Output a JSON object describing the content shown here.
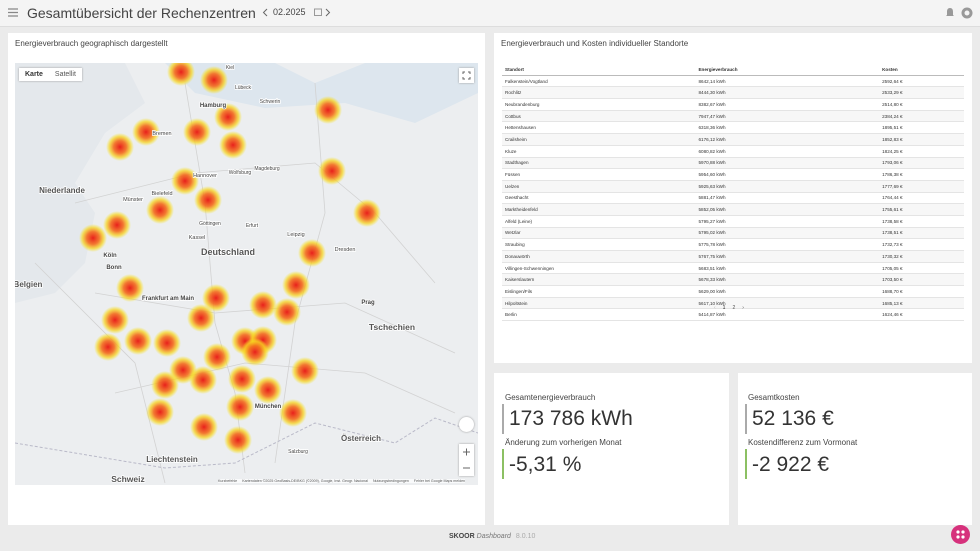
{
  "header": {
    "title": "Gesamtübersicht der Rechenzentren",
    "period": "02.2025"
  },
  "map_panel": {
    "title": "Energieverbrauch geographisch dargestellt",
    "buttons": [
      "Karte",
      "Satellit"
    ],
    "labels": [
      "Niederlande",
      "Belgien",
      "Deutschland",
      "Tschechien",
      "Österreich",
      "Liechtenstein",
      "Schweiz",
      "Hamburg",
      "Bremen",
      "Hannover",
      "Wolfsburg",
      "Münster",
      "Bielefeld",
      "Göttingen",
      "Kassel",
      "Leipzig",
      "Dresden",
      "Köln",
      "Bonn",
      "Frankfurt am Main",
      "München",
      "Prag",
      "Lübeck",
      "Kiel",
      "Schwerin",
      "Magdeburg",
      "Erfurt",
      "Salzburg"
    ],
    "attribution": [
      "Kurzbefehle",
      "Kartendaten ©2025 GeoBasis-DE/BKG (©2009), Google, Inst. Geogr. Nacional",
      "Nutzungsbedingungen",
      "Fehler bei Google Maps melden"
    ]
  },
  "table_panel": {
    "title": "Energieverbrauch und Kosten individueller Standorte",
    "columns": [
      "Standort",
      "Energieverbrauch",
      "Kosten"
    ],
    "rows": [
      [
        "Falkenstein/Vogtland",
        "8642,14 kWh",
        "2592,64 €"
      ],
      [
        "Rochlitz",
        "8444,30 kWh",
        "2533,29 €"
      ],
      [
        "Neubrandenburg",
        "8382,67 kWh",
        "2514,80 €"
      ],
      [
        "Cottbus",
        "7947,47 kWh",
        "2384,24 €"
      ],
      [
        "Hettenshausen",
        "6318,36 kWh",
        "1895,51 €"
      ],
      [
        "Crailsheim",
        "6176,12 kWh",
        "1852,83 €"
      ],
      [
        "Kluze",
        "6080,82 kWh",
        "1824,25 €"
      ],
      [
        "Stadthagen",
        "5970,88 kWh",
        "1793,06 €"
      ],
      [
        "Füssen",
        "5954,60 kWh",
        "1786,38 €"
      ],
      [
        "Uelzen",
        "5925,63 kWh",
        "1777,69 €"
      ],
      [
        "Geesthacht",
        "5881,47 kWh",
        "1764,44 €"
      ],
      [
        "Marktheidenfeld",
        "5852,05 kWh",
        "1755,61 €"
      ],
      [
        "Alfeld (Leine)",
        "5795,27 kWh",
        "1738,58 €"
      ],
      [
        "Wetzlar",
        "5795,02 kWh",
        "1738,51 €"
      ],
      [
        "Straubing",
        "5775,78 kWh",
        "1732,73 €"
      ],
      [
        "Donauwörth",
        "5767,75 kWh",
        "1730,32 €"
      ],
      [
        "Villingen-Schwenningen",
        "5683,51 kWh",
        "1705,05 €"
      ],
      [
        "Kaiserslautern",
        "5678,33 kWh",
        "1703,50 €"
      ],
      [
        "Eislingen/Fils",
        "5629,00 kWh",
        "1688,70 €"
      ],
      [
        "Hilpoltstein",
        "5617,10 kWh",
        "1685,13 €"
      ],
      [
        "Berlin",
        "5414,87 kWh",
        "1624,46 €"
      ]
    ],
    "pagination": {
      "prev": "‹",
      "pages": [
        "1",
        "2"
      ],
      "next": "›"
    }
  },
  "kpi_energy": {
    "title": "Gesamtenergieverbrauch",
    "value": "173 786 kWh",
    "change_label": "Änderung zum vorherigen Monat",
    "change_value": "-5,31 %"
  },
  "kpi_cost": {
    "title": "Gesamtkosten",
    "value": "52 136 €",
    "change_label": "Kostendifferenz zum Vormonat",
    "change_value": "-2 922 €"
  },
  "footer": {
    "brand": "SKOOR",
    "product": "Dashboard",
    "version": "8.0.10"
  }
}
